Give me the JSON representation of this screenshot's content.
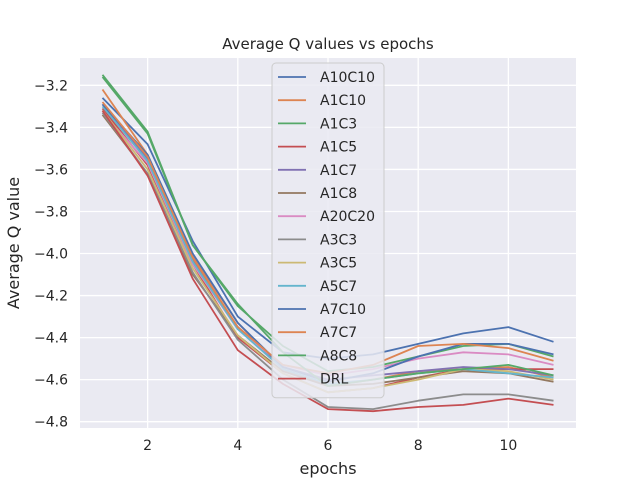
{
  "chart_data": {
    "type": "line",
    "title": "Average Q values vs epochs",
    "xlabel": "epochs",
    "ylabel": "Average Q value",
    "xlim": [
      0.5,
      11.5
    ],
    "ylim": [
      -4.83,
      -3.07
    ],
    "xticks": [
      2,
      4,
      6,
      8,
      10
    ],
    "yticks": [
      -4.8,
      -4.6,
      -4.4,
      -4.2,
      -4.0,
      -3.8,
      -3.6,
      -3.4,
      -3.2
    ],
    "grid": true,
    "background": "#EAEAF2",
    "legend": "upper-center",
    "x": [
      1,
      2,
      3,
      4,
      5,
      6,
      7,
      8,
      9,
      10,
      11
    ],
    "series": [
      {
        "name": "A10C10",
        "color": "#4C72B0",
        "values": [
          -3.26,
          -3.48,
          -3.94,
          -4.3,
          -4.47,
          -4.5,
          -4.48,
          -4.43,
          -4.38,
          -4.35,
          -4.42
        ]
      },
      {
        "name": "A1C10",
        "color": "#DD8452",
        "values": [
          -3.22,
          -3.53,
          -4.01,
          -4.33,
          -4.55,
          -4.63,
          -4.6,
          -4.56,
          -4.55,
          -4.54,
          -4.59
        ]
      },
      {
        "name": "A1C3",
        "color": "#55A868",
        "values": [
          -3.16,
          -3.43,
          -3.96,
          -4.25,
          -4.44,
          -4.56,
          -4.54,
          -4.49,
          -4.44,
          -4.43,
          -4.49
        ]
      },
      {
        "name": "A1C5",
        "color": "#C44E52",
        "values": [
          -3.31,
          -3.58,
          -4.05,
          -4.4,
          -4.57,
          -4.66,
          -4.64,
          -4.59,
          -4.55,
          -4.55,
          -4.55
        ]
      },
      {
        "name": "A1C7",
        "color": "#8172B3",
        "values": [
          -3.29,
          -3.55,
          -4.03,
          -4.35,
          -4.54,
          -4.6,
          -4.58,
          -4.56,
          -4.54,
          -4.55,
          -4.58
        ]
      },
      {
        "name": "A1C8",
        "color": "#937860",
        "values": [
          -3.34,
          -3.62,
          -4.1,
          -4.39,
          -4.56,
          -4.63,
          -4.62,
          -4.59,
          -4.56,
          -4.57,
          -4.61
        ]
      },
      {
        "name": "A20C20",
        "color": "#DA8BC3",
        "values": [
          -3.33,
          -3.57,
          -4.05,
          -4.36,
          -4.53,
          -4.58,
          -4.55,
          -4.5,
          -4.47,
          -4.48,
          -4.53
        ]
      },
      {
        "name": "A3C3",
        "color": "#8C8C8C",
        "values": [
          -3.33,
          -3.62,
          -4.09,
          -4.41,
          -4.6,
          -4.73,
          -4.74,
          -4.7,
          -4.67,
          -4.67,
          -4.7
        ]
      },
      {
        "name": "A3C5",
        "color": "#CCB974",
        "values": [
          -3.32,
          -3.6,
          -4.07,
          -4.39,
          -4.57,
          -4.66,
          -4.64,
          -4.6,
          -4.55,
          -4.56,
          -4.6
        ]
      },
      {
        "name": "A5C7",
        "color": "#64B5CD",
        "values": [
          -3.3,
          -3.56,
          -4.04,
          -4.36,
          -4.55,
          -4.62,
          -4.6,
          -4.57,
          -4.55,
          -4.57,
          -4.59
        ]
      },
      {
        "name": "A7C10",
        "color": "#4C72B0",
        "values": [
          -3.29,
          -3.53,
          -4.0,
          -4.33,
          -4.54,
          -4.61,
          -4.57,
          -4.49,
          -4.43,
          -4.43,
          -4.48
        ]
      },
      {
        "name": "A7C7",
        "color": "#DD8452",
        "values": [
          -3.28,
          -3.54,
          -4.02,
          -4.35,
          -4.53,
          -4.57,
          -4.53,
          -4.44,
          -4.43,
          -4.45,
          -4.51
        ]
      },
      {
        "name": "A8C8",
        "color": "#55A868",
        "values": [
          -3.15,
          -3.42,
          -3.96,
          -4.24,
          -4.47,
          -4.63,
          -4.6,
          -4.57,
          -4.55,
          -4.53,
          -4.58
        ]
      },
      {
        "name": "DRL",
        "color": "#C44E52",
        "values": [
          -3.32,
          -3.63,
          -4.12,
          -4.46,
          -4.62,
          -4.74,
          -4.75,
          -4.73,
          -4.72,
          -4.69,
          -4.72
        ]
      }
    ]
  }
}
